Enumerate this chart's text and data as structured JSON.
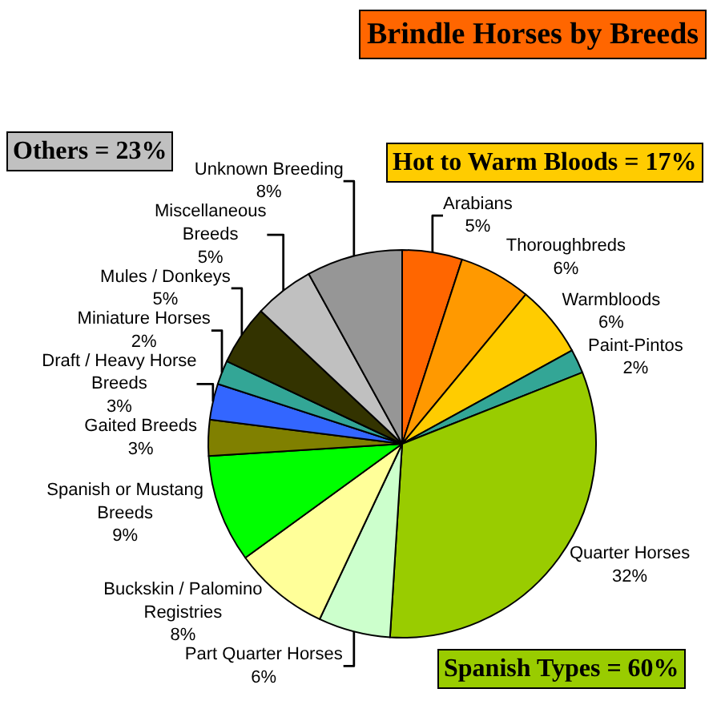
{
  "chart_data": {
    "type": "pie",
    "title": "Brindle Horses by Breeds",
    "categories": [
      "Arabians",
      "Thoroughbreds",
      "Warmbloods",
      "Paint-Pintos",
      "Quarter Horses",
      "Part Quarter Horses",
      "Buckskin / Palomino Registries",
      "Spanish or Mustang Breeds",
      "Gaited Breeds",
      "Draft / Heavy Horse Breeds",
      "Miniature Horses",
      "Mules / Donkeys",
      "Miscellaneous Breeds",
      "Unknown Breeding"
    ],
    "values": [
      5,
      6,
      6,
      2,
      32,
      6,
      8,
      9,
      3,
      3,
      2,
      5,
      5,
      8
    ],
    "value_labels": [
      "5%",
      "6%",
      "6%",
      "2%",
      "32%",
      "6%",
      "8%",
      "9%",
      "3%",
      "3%",
      "2%",
      "5%",
      "5%",
      "8%"
    ],
    "colors": [
      "#ff6600",
      "#ff9900",
      "#ffcc00",
      "#33a696",
      "#99cc00",
      "#ccffcc",
      "#ffff99",
      "#00ff00",
      "#808000",
      "#3366ff",
      "#33a696",
      "#333300",
      "#c0c0c0",
      "#969696"
    ],
    "annotations": [
      "Others = 23%",
      "Hot to Warm Bloods = 17%",
      "Spanish Types = 60%"
    ],
    "legend": false
  }
}
